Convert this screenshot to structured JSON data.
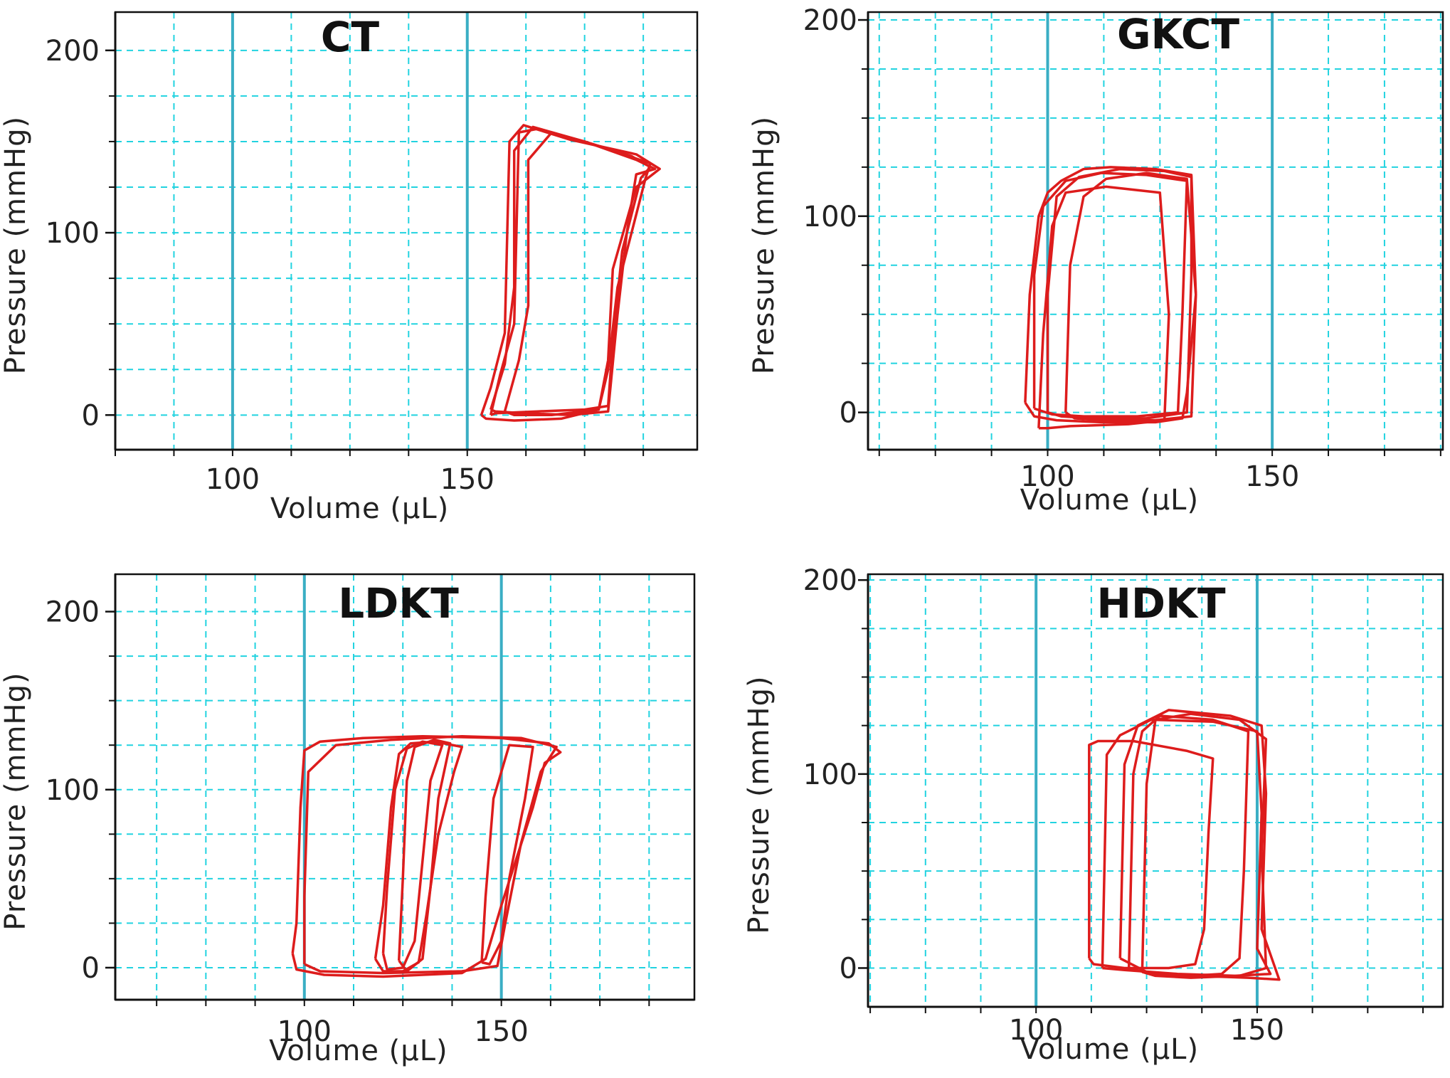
{
  "colors": {
    "loop": "#dd1c1c",
    "grid": "#22d3e0",
    "volume_marker": "#3aaec4",
    "frame": "#111111",
    "background": "#ffffff"
  },
  "chart_data": [
    {
      "type": "line",
      "title": "CT",
      "xlabel": "Volume (µL)",
      "ylabel": "Pressure (mmHg)",
      "xlim": [
        75,
        199
      ],
      "ylim": [
        -19,
        221
      ],
      "x_ticks": [
        100,
        150
      ],
      "y_ticks": [
        0,
        100,
        200
      ],
      "marker_lines_x": [
        100,
        150
      ],
      "grid": true,
      "series": [
        {
          "x": [
            155,
            157,
            160,
            161,
            165,
            175,
            185,
            189,
            187,
            183,
            181,
            180,
            175,
            165,
            156,
            155
          ],
          "y": [
            0,
            22,
            50,
            155,
            157,
            150,
            142,
            136,
            130,
            90,
            40,
            5,
            3,
            2,
            1,
            0
          ]
        },
        {
          "x": [
            153,
            155,
            158,
            159,
            162,
            172,
            186,
            191,
            186,
            181,
            180,
            178,
            170,
            160,
            154,
            153
          ],
          "y": [
            0,
            15,
            45,
            150,
            159,
            151,
            143,
            135,
            125,
            80,
            30,
            3,
            -2,
            -3,
            -2,
            0
          ]
        },
        {
          "x": [
            155,
            158,
            160,
            160,
            164,
            175,
            186,
            190,
            186,
            184,
            182,
            180,
            172,
            162,
            156,
            155
          ],
          "y": [
            3,
            28,
            70,
            145,
            158,
            150,
            140,
            135,
            132,
            100,
            55,
            2,
            0,
            1,
            2,
            3
          ]
        },
        {
          "x": [
            158,
            161,
            163,
            163,
            168,
            180,
            189,
            188,
            182,
            180,
            178,
            168,
            160,
            158
          ],
          "y": [
            2,
            30,
            60,
            140,
            155,
            146,
            138,
            130,
            70,
            25,
            3,
            0,
            0,
            2
          ]
        }
      ]
    },
    {
      "type": "line",
      "title": "GKCT",
      "xlabel": "Volume (µL)",
      "ylabel": "Pressure (mmHg)",
      "xlim": [
        60,
        188
      ],
      "ylim": [
        -19,
        204
      ],
      "x_ticks": [
        100,
        150
      ],
      "y_ticks": [
        0,
        100,
        200
      ],
      "marker_lines_x": [
        100,
        150
      ],
      "grid": true,
      "series": [
        {
          "x": [
            95,
            96,
            98,
            100,
            103,
            108,
            114,
            124,
            132,
            133,
            131,
            130,
            124,
            112,
            102,
            97,
            95
          ],
          "y": [
            5,
            60,
            100,
            112,
            118,
            124,
            125,
            124,
            121,
            60,
            10,
            -3,
            -5,
            -5,
            -4,
            -2,
            5
          ]
        },
        {
          "x": [
            97,
            97,
            99,
            104,
            112,
            122,
            131,
            130,
            129,
            120,
            108,
            101,
            97
          ],
          "y": [
            2,
            70,
            105,
            118,
            122,
            121,
            118,
            50,
            0,
            -2,
            -2,
            -1,
            2
          ]
        },
        {
          "x": [
            100,
            100,
            102,
            107,
            116,
            126,
            132,
            132,
            131,
            122,
            110,
            103,
            100
          ],
          "y": [
            0,
            60,
            110,
            120,
            124,
            123,
            120,
            70,
            0,
            -3,
            -3,
            -2,
            0
          ]
        },
        {
          "x": [
            98,
            99,
            101,
            104,
            113,
            125,
            127,
            126,
            118,
            105,
            100,
            98
          ],
          "y": [
            -8,
            40,
            95,
            112,
            115,
            112,
            50,
            -4,
            -6,
            -7,
            -8,
            -8
          ]
        },
        {
          "x": [
            104,
            105,
            108,
            113,
            122,
            131,
            133,
            132,
            124,
            112,
            106,
            104
          ],
          "y": [
            0,
            75,
            110,
            119,
            122,
            119,
            60,
            -2,
            -4,
            -4,
            -3,
            0
          ]
        }
      ]
    },
    {
      "type": "line",
      "title": "LDKT",
      "xlabel": "Volume (µL)",
      "ylabel": "Pressure (mmHg)",
      "xlim": [
        52,
        199
      ],
      "ylim": [
        -18,
        221
      ],
      "x_ticks": [
        100,
        150
      ],
      "y_ticks": [
        0,
        100,
        200
      ],
      "marker_lines_x": [
        100,
        150
      ],
      "grid": true,
      "series": [
        {
          "x": [
            97,
            98,
            99,
            100,
            104,
            115,
            130,
            150,
            162,
            165,
            161,
            158,
            150,
            146,
            140,
            120,
            105,
            98,
            97
          ],
          "y": [
            8,
            25,
            90,
            122,
            127,
            129,
            130,
            129,
            126,
            121,
            115,
            90,
            35,
            5,
            -3,
            -5,
            -4,
            -1,
            8
          ]
        },
        {
          "x": [
            100,
            100,
            101,
            108,
            122,
            140,
            155,
            164,
            160,
            155,
            151,
            149,
            140,
            120,
            104,
            100
          ],
          "y": [
            2,
            40,
            110,
            125,
            128,
            130,
            129,
            124,
            110,
            70,
            25,
            1,
            -2,
            -3,
            -2,
            2
          ]
        },
        {
          "x": [
            118,
            120,
            122,
            124,
            127,
            133,
            140,
            138,
            134,
            131,
            129,
            125,
            120,
            118
          ],
          "y": [
            5,
            35,
            90,
            120,
            126,
            127,
            124,
            110,
            75,
            30,
            3,
            -2,
            -2,
            5
          ]
        },
        {
          "x": [
            120,
            121,
            123,
            126,
            130,
            135,
            132,
            130,
            128,
            125,
            121,
            120
          ],
          "y": [
            8,
            45,
            100,
            123,
            127,
            125,
            105,
            60,
            15,
            0,
            -1,
            8
          ]
        },
        {
          "x": [
            124,
            125,
            126,
            128,
            133,
            137,
            134,
            132,
            130,
            126,
            124
          ],
          "y": [
            4,
            50,
            105,
            124,
            128,
            126,
            95,
            45,
            5,
            -2,
            4
          ]
        },
        {
          "x": [
            145,
            146,
            148,
            152,
            158,
            156,
            152,
            150,
            147,
            145
          ],
          "y": [
            3,
            40,
            95,
            125,
            124,
            95,
            50,
            15,
            2,
            3
          ]
        }
      ]
    },
    {
      "type": "line",
      "title": "HDKT",
      "xlabel": "Volume (µL)",
      "ylabel": "Pressure (mmHg)",
      "xlim": [
        62,
        192
      ],
      "ylim": [
        -20,
        203
      ],
      "x_ticks": [
        100,
        150
      ],
      "y_ticks": [
        0,
        100,
        200
      ],
      "marker_lines_x": [
        100,
        150
      ],
      "grid": true,
      "series": [
        {
          "x": [
            112,
            112,
            114,
            122,
            134,
            140,
            139,
            138,
            136,
            130,
            120,
            113,
            112
          ],
          "y": [
            5,
            115,
            117,
            117,
            112,
            108,
            70,
            20,
            2,
            0,
            0,
            2,
            5
          ]
        },
        {
          "x": [
            115,
            116,
            119,
            126,
            140,
            150,
            151,
            150,
            153,
            145,
            132,
            120,
            115
          ],
          "y": [
            0,
            110,
            120,
            128,
            127,
            122,
            80,
            10,
            -3,
            -4,
            -3,
            -1,
            0
          ]
        },
        {
          "x": [
            119,
            120,
            123,
            130,
            144,
            151,
            152,
            151,
            155,
            148,
            136,
            125,
            119
          ],
          "y": [
            5,
            105,
            125,
            133,
            130,
            125,
            90,
            20,
            -6,
            -5,
            -4,
            -2,
            5
          ]
        },
        {
          "x": [
            121,
            122,
            124,
            128,
            140,
            148,
            147,
            146,
            142,
            135,
            126,
            121
          ],
          "y": [
            0,
            100,
            122,
            130,
            128,
            122,
            50,
            5,
            -3,
            -4,
            -3,
            0
          ]
        },
        {
          "x": [
            124,
            125,
            127,
            135,
            146,
            152,
            151,
            152,
            146,
            135,
            127,
            124
          ],
          "y": [
            -2,
            95,
            128,
            131,
            128,
            118,
            60,
            0,
            -4,
            -5,
            -4,
            -2
          ]
        }
      ]
    }
  ]
}
